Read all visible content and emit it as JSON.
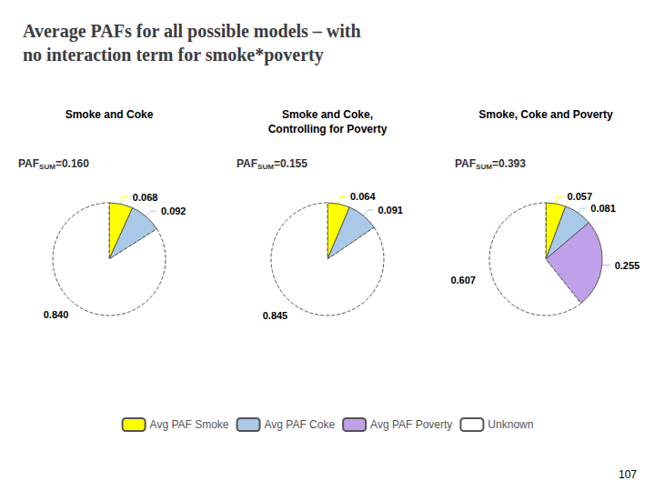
{
  "title": "Average PAFs for all possible models – with\nno interaction term for smoke*poverty",
  "annotations": [
    "107"
  ],
  "legend": "bottom",
  "chart_data": [
    {
      "type": "pie",
      "title": "Smoke and Coke",
      "categories": [
        "Avg PAF Smoke",
        "Avg PAF Coke",
        "Unknown"
      ],
      "values": [
        0.068,
        0.092,
        0.84
      ],
      "value_labels": [
        "0.068",
        "0.092",
        "0.840"
      ],
      "colors": [
        "#ffff00",
        "#aac8e8",
        "#ffffff"
      ],
      "data_labels": true,
      "annotations": [
        {
          "text": "PAF",
          "subscript": "SUM",
          "suffix": "=0.160"
        }
      ]
    },
    {
      "type": "pie",
      "title": "Smoke and Coke,\nControlling for Poverty",
      "categories": [
        "Avg PAF Smoke",
        "Avg PAF Coke",
        "Unknown"
      ],
      "values": [
        0.064,
        0.091,
        0.845
      ],
      "value_labels": [
        "0.064",
        "0.091",
        "0.845"
      ],
      "colors": [
        "#ffff00",
        "#aac8e8",
        "#ffffff"
      ],
      "data_labels": true,
      "annotations": [
        {
          "text": "PAF",
          "subscript": "SUM",
          "suffix": "=0.155"
        }
      ]
    },
    {
      "type": "pie",
      "title": "Smoke, Coke and Poverty",
      "categories": [
        "Avg PAF Smoke",
        "Avg PAF Coke",
        "Avg PAF Poverty",
        "Unknown"
      ],
      "values": [
        0.057,
        0.081,
        0.255,
        0.607
      ],
      "value_labels": [
        "0.057",
        "0.081",
        "0.255",
        "0.607"
      ],
      "colors": [
        "#ffff00",
        "#aac8e8",
        "#c0a0e8",
        "#ffffff"
      ],
      "data_labels": true,
      "annotations": [
        {
          "text": "PAF",
          "subscript": "SUM",
          "suffix": "=0.393"
        }
      ]
    }
  ]
}
